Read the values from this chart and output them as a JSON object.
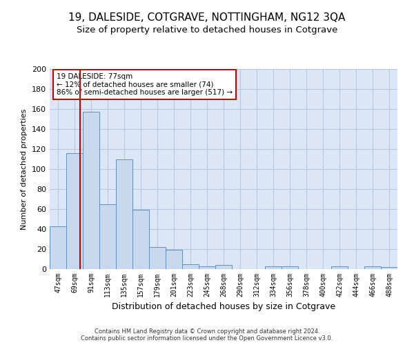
{
  "title": "19, DALESIDE, COTGRAVE, NOTTINGHAM, NG12 3QA",
  "subtitle": "Size of property relative to detached houses in Cotgrave",
  "xlabel": "Distribution of detached houses by size in Cotgrave",
  "ylabel": "Number of detached properties",
  "categories": [
    "47sqm",
    "69sqm",
    "91sqm",
    "113sqm",
    "135sqm",
    "157sqm",
    "179sqm",
    "201sqm",
    "223sqm",
    "245sqm",
    "268sqm",
    "290sqm",
    "312sqm",
    "334sqm",
    "356sqm",
    "378sqm",
    "400sqm",
    "422sqm",
    "444sqm",
    "466sqm",
    "488sqm"
  ],
  "values": [
    43,
    116,
    157,
    65,
    110,
    59,
    22,
    19,
    5,
    3,
    4,
    0,
    0,
    3,
    3,
    0,
    0,
    3,
    0,
    3,
    2
  ],
  "bar_color": "#c8d9ee",
  "bar_edge_color": "#6090c0",
  "property_line_x": 1.35,
  "property_label": "19 DALESIDE: 77sqm",
  "annotation_line1": "← 12% of detached houses are smaller (74)",
  "annotation_line2": "86% of semi-detached houses are larger (517) →",
  "annotation_box_color": "#ffffff",
  "annotation_box_edge": "#cc0000",
  "vline_color": "#cc0000",
  "ylim": [
    0,
    200
  ],
  "yticks": [
    0,
    20,
    40,
    60,
    80,
    100,
    120,
    140,
    160,
    180,
    200
  ],
  "grid_color": "#b8c8dc",
  "bg_color": "#dce6f4",
  "footer_line1": "Contains HM Land Registry data © Crown copyright and database right 2024.",
  "footer_line2": "Contains public sector information licensed under the Open Government Licence v3.0.",
  "title_fontsize": 11,
  "subtitle_fontsize": 9.5,
  "xlabel_fontsize": 9,
  "ylabel_fontsize": 8,
  "tick_fontsize": 7,
  "ytick_fontsize": 8,
  "annotation_fontsize": 7.5,
  "footer_fontsize": 6
}
